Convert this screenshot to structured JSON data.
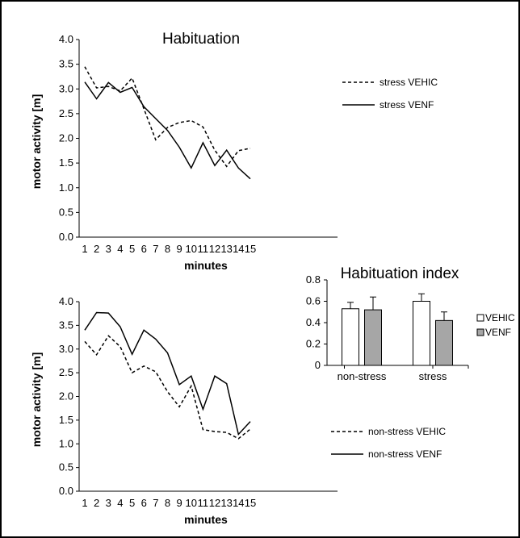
{
  "chart_data": [
    {
      "type": "line",
      "title": "Habituation",
      "xlabel": "minutes",
      "ylabel": "motor activity [m]",
      "x": [
        1,
        2,
        3,
        4,
        5,
        6,
        7,
        8,
        9,
        10,
        11,
        12,
        13,
        14,
        15
      ],
      "ylim": [
        0,
        4.0
      ],
      "yticks": [
        "0.0",
        "0.5",
        "1.0",
        "1.5",
        "2.0",
        "2.5",
        "3.0",
        "3.5",
        "4.0"
      ],
      "legend_position": "right",
      "series": [
        {
          "name": "stress VEHIC",
          "style": "dashed",
          "values": [
            3.45,
            3.02,
            3.05,
            2.96,
            3.22,
            2.6,
            1.97,
            2.22,
            2.32,
            2.36,
            2.23,
            1.76,
            1.43,
            1.75,
            1.8
          ]
        },
        {
          "name": "stress VENF",
          "style": "solid",
          "values": [
            3.14,
            2.8,
            3.13,
            2.93,
            3.03,
            2.64,
            2.4,
            2.16,
            1.82,
            1.4,
            1.91,
            1.45,
            1.76,
            1.4,
            1.18
          ]
        }
      ]
    },
    {
      "type": "line",
      "title": "",
      "xlabel": "minutes",
      "ylabel": "motor activity [m]",
      "x": [
        1,
        2,
        3,
        4,
        5,
        6,
        7,
        8,
        9,
        10,
        11,
        12,
        13,
        14,
        15
      ],
      "ylim": [
        0,
        4.0
      ],
      "yticks": [
        "0.0",
        "0.5",
        "1.0",
        "1.5",
        "2.0",
        "2.5",
        "3.0",
        "3.5",
        "4.0"
      ],
      "legend_position": "bottom-right",
      "series": [
        {
          "name": "non-stress VEHIC",
          "style": "dashed",
          "values": [
            3.16,
            2.88,
            3.28,
            3.05,
            2.5,
            2.64,
            2.52,
            2.1,
            1.78,
            2.22,
            1.3,
            1.26,
            1.24,
            1.11,
            1.31
          ]
        },
        {
          "name": "non-stress VENF",
          "style": "solid",
          "values": [
            3.4,
            3.77,
            3.76,
            3.47,
            2.89,
            3.4,
            3.21,
            2.92,
            2.25,
            2.43,
            1.73,
            2.43,
            2.27,
            1.2,
            1.47
          ]
        }
      ]
    },
    {
      "type": "bar",
      "title": "Habituation index",
      "categories": [
        "non-stress",
        "stress"
      ],
      "ylim": [
        0,
        0.8
      ],
      "yticks": [
        "0",
        "0.2",
        "0.4",
        "0.6",
        "0.8"
      ],
      "legend_position": "right",
      "series": [
        {
          "name": "VEHIC",
          "color": "#ffffff",
          "values": [
            0.53,
            0.6
          ],
          "errors": [
            0.06,
            0.07
          ]
        },
        {
          "name": "VENF",
          "color": "#a6a6a6",
          "values": [
            0.52,
            0.42
          ],
          "errors": [
            0.12,
            0.08
          ]
        }
      ]
    }
  ]
}
